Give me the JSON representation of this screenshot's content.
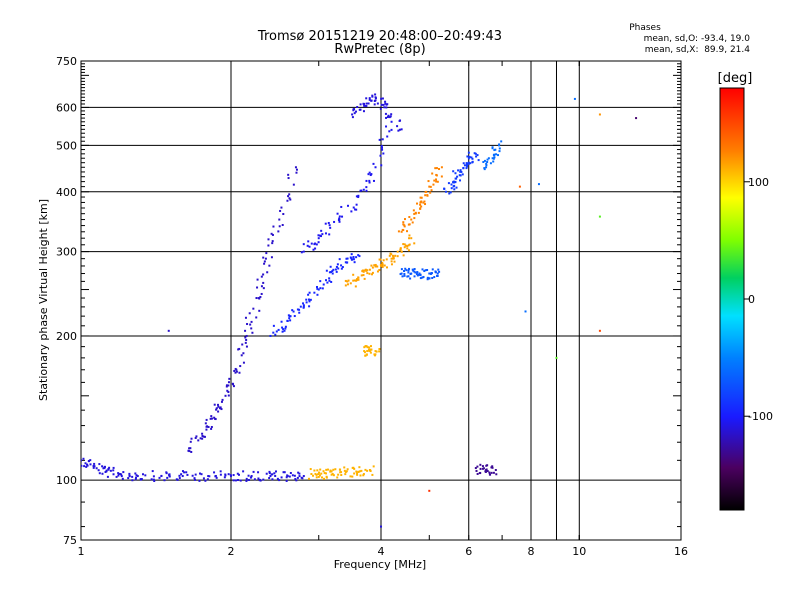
{
  "chart_data": {
    "type": "scatter",
    "title": "Tromsø 20151219 20:48:00–20:49:43",
    "subtitle": "RwPretec (8p)",
    "xlabel": "Frequency [MHz]",
    "ylabel": "Stationary phase Virtual Height [km]",
    "x_scale": "log",
    "y_scale": "log",
    "xlim": [
      1,
      16
    ],
    "ylim": [
      75,
      750
    ],
    "x_ticks": [
      1,
      2,
      4,
      6,
      8,
      10,
      16
    ],
    "x_ticks_extra": [
      9
    ],
    "y_ticks": [
      75,
      100,
      200,
      300,
      400,
      500,
      600,
      750
    ],
    "grid": true,
    "stats": {
      "header": "Phases",
      "o_line": "mean, sd,O: -93.4, 19.0",
      "x_line": "mean, sd,X:  89.9, 21.4"
    },
    "colorbar": {
      "label": "[deg]",
      "range": [
        -180,
        180
      ],
      "ticks": [
        100,
        0,
        -100
      ],
      "position": "right"
    },
    "traces": [
      {
        "x": [
          1.0,
          1.06,
          1.12,
          1.2,
          1.3,
          1.45,
          1.6,
          1.8,
          2.0,
          2.2,
          2.4,
          2.6,
          2.8
        ],
        "y": [
          110,
          107,
          104,
          103,
          102,
          102,
          102,
          102,
          102,
          102,
          102,
          102,
          102
        ],
        "phase": -110
      },
      {
        "x": [
          2.9,
          3.0,
          3.2,
          3.4,
          3.6,
          3.8
        ],
        "y": [
          103,
          103,
          103,
          104,
          104,
          105
        ],
        "phase": 110
      },
      {
        "x": [
          1.65,
          1.75,
          1.85,
          1.95,
          2.05,
          2.15,
          2.25,
          2.35,
          2.5,
          2.7
        ],
        "y": [
          115,
          125,
          135,
          150,
          170,
          200,
          240,
          290,
          350,
          450
        ],
        "phase": -115
      },
      {
        "x": [
          2.4,
          2.6,
          2.8,
          3.0,
          3.2,
          3.4,
          3.6
        ],
        "y": [
          200,
          215,
          230,
          250,
          270,
          285,
          295
        ],
        "phase": -95
      },
      {
        "x": [
          2.8,
          3.0,
          3.3,
          3.6,
          3.9,
          4.2
        ],
        "y": [
          300,
          320,
          350,
          390,
          450,
          560
        ],
        "phase": -105
      },
      {
        "x": [
          3.5,
          3.7,
          3.9,
          4.1,
          4.4
        ],
        "y": [
          580,
          610,
          630,
          600,
          540
        ],
        "phase": -110
      },
      {
        "x": [
          3.4,
          3.6,
          3.8,
          4.0,
          4.2,
          4.4,
          4.6
        ],
        "y": [
          255,
          265,
          275,
          280,
          290,
          300,
          320
        ],
        "phase": 115
      },
      {
        "x": [
          4.4,
          4.6,
          4.8,
          5.0,
          5.2
        ],
        "y": [
          270,
          270,
          268,
          270,
          270
        ],
        "phase": -70
      },
      {
        "x": [
          4.4,
          4.6,
          4.8,
          5.0,
          5.3
        ],
        "y": [
          330,
          350,
          380,
          410,
          450
        ],
        "phase": 125
      },
      {
        "x": [
          5.4,
          5.6,
          5.8,
          6.0,
          6.2
        ],
        "y": [
          400,
          420,
          440,
          460,
          480
        ],
        "phase": -85
      },
      {
        "x": [
          6.5,
          6.7,
          6.9
        ],
        "y": [
          450,
          470,
          500
        ],
        "phase": -60
      },
      {
        "x": [
          6.2,
          6.5,
          6.8
        ],
        "y": [
          106,
          105,
          105
        ],
        "phase": -130
      },
      {
        "x": [
          3.7,
          3.8,
          3.9
        ],
        "y": [
          186,
          186,
          186
        ],
        "phase": 110
      }
    ],
    "isolated_points": [
      {
        "x": 1.5,
        "y": 205,
        "phase": -115
      },
      {
        "x": 4.0,
        "y": 80,
        "phase": -110
      },
      {
        "x": 5.0,
        "y": 95,
        "phase": 160
      },
      {
        "x": 7.6,
        "y": 410,
        "phase": 140
      },
      {
        "x": 7.8,
        "y": 225,
        "phase": -60
      },
      {
        "x": 8.3,
        "y": 415,
        "phase": -60
      },
      {
        "x": 9.0,
        "y": 180,
        "phase": 40
      },
      {
        "x": 9.8,
        "y": 625,
        "phase": -60
      },
      {
        "x": 11.0,
        "y": 205,
        "phase": 150
      },
      {
        "x": 11.0,
        "y": 355,
        "phase": 40
      },
      {
        "x": 11.0,
        "y": 580,
        "phase": 120
      },
      {
        "x": 13.0,
        "y": 570,
        "phase": -140
      }
    ]
  }
}
